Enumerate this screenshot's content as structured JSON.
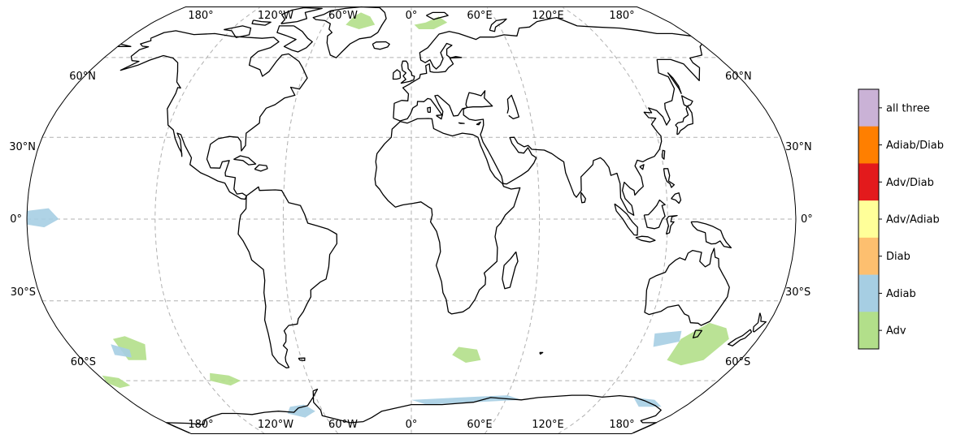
{
  "map": {
    "projection": "robinson",
    "top_lon_labels": [
      "180°",
      "120°W",
      "60°W",
      "0°",
      "60°E",
      "120°E",
      "180°"
    ],
    "bottom_lon_labels": [
      "180°",
      "120°W",
      "60°W",
      "0°",
      "60°E",
      "120°E",
      "180°"
    ],
    "left_lat_labels": [
      "60°N",
      "30°N",
      "0°",
      "30°S",
      "60°S"
    ],
    "right_lat_labels": [
      "60°N",
      "30°N",
      "0°",
      "30°S",
      "60°S"
    ],
    "gridlines": true
  },
  "legend": {
    "title": "",
    "categories": [
      {
        "label": "all three",
        "color": "#cab2d6"
      },
      {
        "label": "Adiab/Diab",
        "color": "#ff7f00"
      },
      {
        "label": "Adv/Diab",
        "color": "#e31a1c"
      },
      {
        "label": "Adv/Adiab",
        "color": "#ffff99"
      },
      {
        "label": "Diab",
        "color": "#fdbf6f"
      },
      {
        "label": "Adiab",
        "color": "#a6cee3"
      },
      {
        "label": "Adv",
        "color": "#b2df8a"
      }
    ]
  },
  "regions": [
    {
      "category": "Adv",
      "lon": -40,
      "lat": 70
    },
    {
      "category": "Adv",
      "lon": 10,
      "lat": 76
    },
    {
      "category": "Adv",
      "lon": 140,
      "lat": -47
    },
    {
      "category": "Adv",
      "lon": -150,
      "lat": -52
    },
    {
      "category": "Adv",
      "lon": -105,
      "lat": -60
    },
    {
      "category": "Adv",
      "lon": -175,
      "lat": -63
    },
    {
      "category": "Adv",
      "lon": 30,
      "lat": -50
    },
    {
      "category": "Adiab",
      "lon": -150,
      "lat": -50
    },
    {
      "category": "Adiab",
      "lon": 130,
      "lat": -45
    },
    {
      "category": "Adiab",
      "lon": -75,
      "lat": -72
    },
    {
      "category": "Adiab",
      "lon": 20,
      "lat": -69
    },
    {
      "category": "Adiab",
      "lon": 150,
      "lat": -70
    },
    {
      "category": "Adiab",
      "lon": -175,
      "lat": 0
    }
  ]
}
